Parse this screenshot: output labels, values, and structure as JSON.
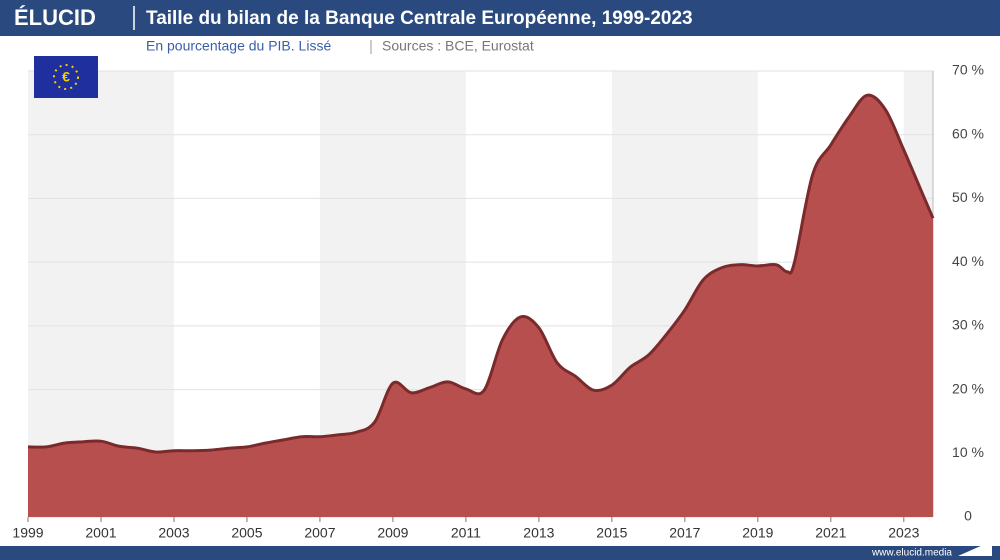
{
  "brand": "ÉLUCID",
  "footer": "www.elucid.media",
  "chart_data": {
    "type": "area",
    "title": "Taille du bilan de la Banque Centrale Européenne, 1999-2023",
    "subtitle": "En pourcentage du PIB. Lissé",
    "source": "Sources : BCE, Eurostat",
    "x": [
      1999,
      1999.5,
      2000,
      2000.5,
      2001,
      2001.5,
      2002,
      2002.5,
      2003,
      2003.5,
      2004,
      2004.5,
      2005,
      2005.5,
      2006,
      2006.5,
      2007,
      2007.5,
      2008,
      2008.5,
      2009,
      2009.5,
      2010,
      2010.5,
      2011,
      2011.5,
      2012,
      2012.5,
      2013,
      2013.5,
      2014,
      2014.5,
      2015,
      2015.5,
      2016,
      2016.5,
      2017,
      2017.5,
      2018,
      2018.5,
      2019,
      2019.5,
      2019.8,
      2020,
      2020.5,
      2021,
      2021.5,
      2022,
      2022.5,
      2023,
      2023.5,
      2023.8
    ],
    "values": [
      11.0,
      11.0,
      11.6,
      11.8,
      11.9,
      11.1,
      10.8,
      10.2,
      10.4,
      10.4,
      10.5,
      10.8,
      11.0,
      11.6,
      12.1,
      12.6,
      12.6,
      12.9,
      13.3,
      14.9,
      21.0,
      19.5,
      20.3,
      21.2,
      20.1,
      19.9,
      27.8,
      31.4,
      29.7,
      24.2,
      22.1,
      19.9,
      20.7,
      23.5,
      25.4,
      28.7,
      32.5,
      37.2,
      39.1,
      39.6,
      39.4,
      39.6,
      38.5,
      39.9,
      53.7,
      58.4,
      62.8,
      66.2,
      63.9,
      57.6,
      50.9,
      46.9
    ],
    "color": "#b84f4f",
    "line_color": "#7b2a2c",
    "xlim": [
      1999,
      2023.8
    ],
    "xticks": [
      1999,
      2001,
      2003,
      2005,
      2007,
      2009,
      2011,
      2013,
      2015,
      2017,
      2019,
      2021,
      2023
    ],
    "ylim": [
      0,
      70
    ],
    "yticks": [
      0,
      {
        "value": 10,
        "label": "10 %"
      },
      {
        "value": 20,
        "label": "20 %"
      },
      {
        "value": 30,
        "label": "30 %"
      },
      {
        "value": 40,
        "label": "40 %"
      },
      {
        "value": 50,
        "label": "50 %"
      },
      {
        "value": 60,
        "label": "60 %"
      },
      {
        "value": 70,
        "label": "70 %"
      }
    ],
    "grid": true
  }
}
